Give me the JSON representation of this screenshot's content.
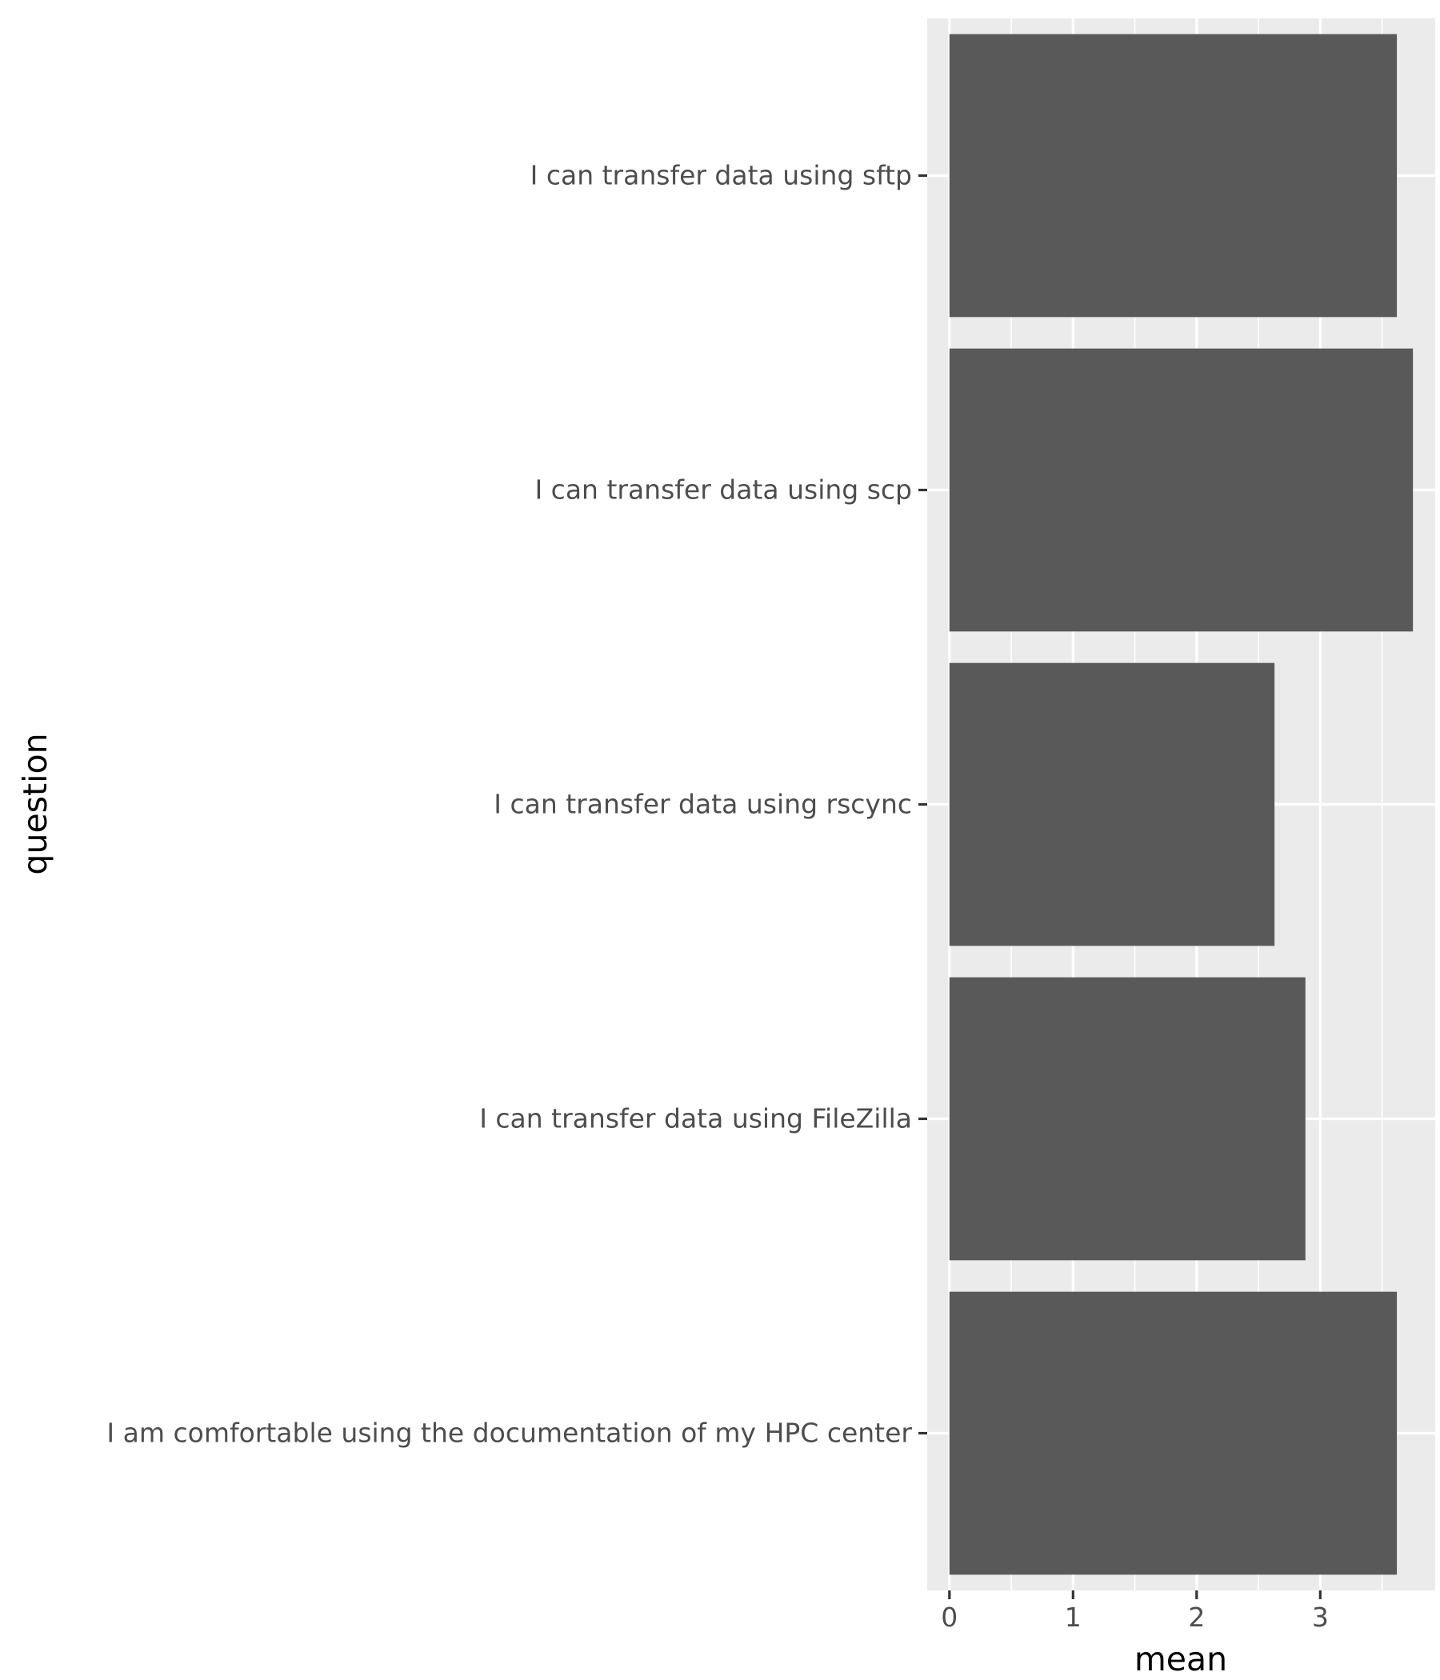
{
  "chart_data": {
    "type": "bar",
    "orientation": "horizontal",
    "categories": [
      "I can transfer data using sftp",
      "I can transfer data using scp",
      "I can transfer data using rscync",
      "I can transfer data using FileZilla",
      "I am comfortable using the documentation of my HPC center"
    ],
    "values": [
      3.62,
      3.75,
      2.63,
      2.88,
      3.62
    ],
    "xlabel": "mean",
    "ylabel": "question",
    "xlim": [
      -0.18,
      3.93
    ],
    "xticks": [
      0,
      1,
      2,
      3
    ],
    "xtick_labels": [
      "0",
      "1",
      "2",
      "3"
    ],
    "grid": true,
    "colors": {
      "panel_background": "#ebebeb",
      "bar_fill": "#595959",
      "grid": "#ffffff"
    }
  }
}
